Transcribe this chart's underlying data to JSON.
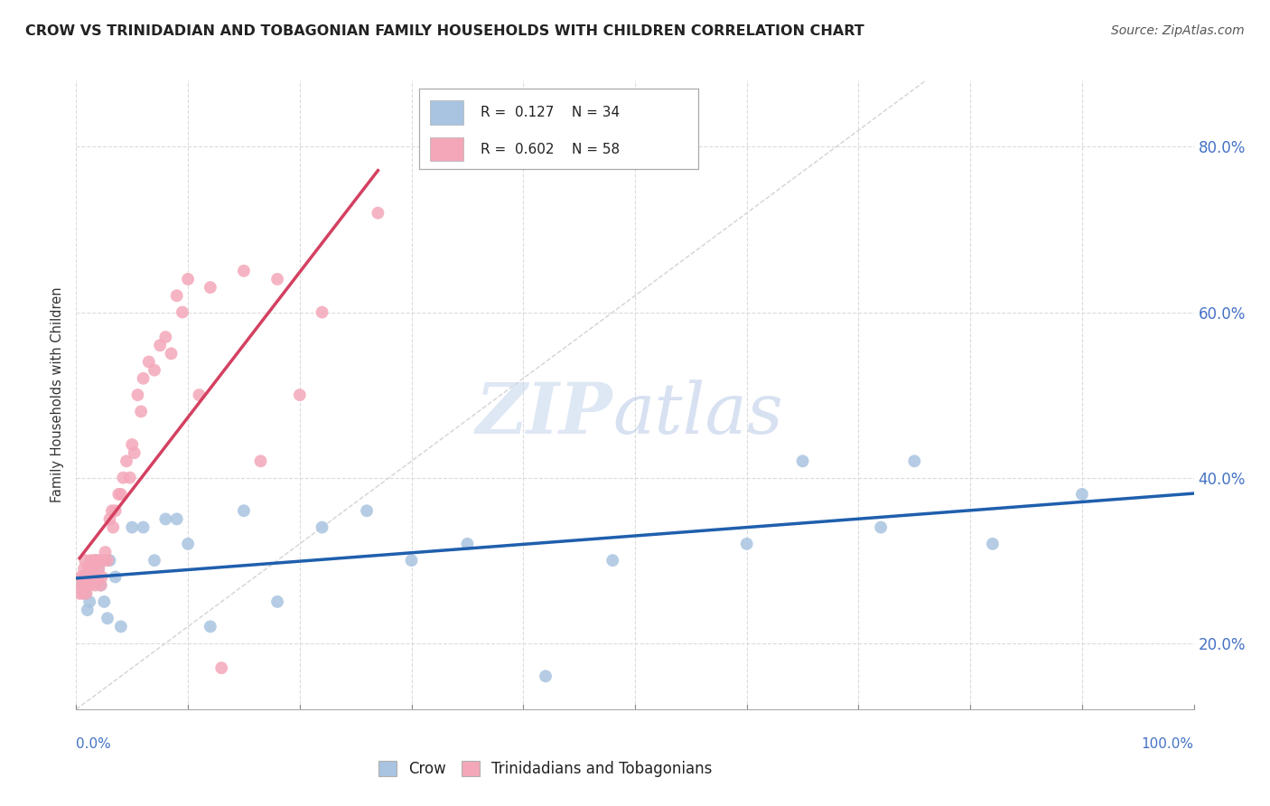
{
  "title": "CROW VS TRINIDADIAN AND TOBAGONIAN FAMILY HOUSEHOLDS WITH CHILDREN CORRELATION CHART",
  "source": "Source: ZipAtlas.com",
  "ylabel": "Family Households with Children",
  "xlim": [
    0.0,
    1.0
  ],
  "ylim": [
    0.12,
    0.88
  ],
  "ytick_values": [
    0.2,
    0.4,
    0.6,
    0.8
  ],
  "xtick_values": [
    0.0,
    0.1,
    0.2,
    0.3,
    0.4,
    0.5,
    0.6,
    0.7,
    0.8,
    0.9,
    1.0
  ],
  "crow_R": 0.127,
  "crow_N": 34,
  "tnt_R": 0.602,
  "tnt_N": 58,
  "crow_color": "#a8c4e0",
  "tnt_color": "#f4a7b9",
  "crow_line_color": "#1f5fad",
  "tnt_line_color": "#d44060",
  "identity_line_color": "#c8c8c8",
  "background_color": "#ffffff",
  "grid_color": "#d8d8d8",
  "crow_points_x": [
    0.005,
    0.008,
    0.01,
    0.012,
    0.015,
    0.018,
    0.02,
    0.022,
    0.025,
    0.028,
    0.03,
    0.035,
    0.04,
    0.05,
    0.06,
    0.07,
    0.08,
    0.09,
    0.1,
    0.12,
    0.15,
    0.18,
    0.22,
    0.26,
    0.3,
    0.35,
    0.42,
    0.48,
    0.6,
    0.65,
    0.72,
    0.75,
    0.82,
    0.9
  ],
  "crow_points_y": [
    0.27,
    0.26,
    0.24,
    0.25,
    0.28,
    0.3,
    0.29,
    0.27,
    0.25,
    0.23,
    0.3,
    0.28,
    0.22,
    0.34,
    0.34,
    0.3,
    0.35,
    0.35,
    0.32,
    0.22,
    0.36,
    0.25,
    0.34,
    0.36,
    0.3,
    0.32,
    0.16,
    0.3,
    0.32,
    0.42,
    0.34,
    0.42,
    0.32,
    0.38
  ],
  "tnt_points_x": [
    0.003,
    0.004,
    0.005,
    0.006,
    0.006,
    0.007,
    0.007,
    0.008,
    0.008,
    0.009,
    0.01,
    0.011,
    0.012,
    0.013,
    0.014,
    0.015,
    0.016,
    0.017,
    0.018,
    0.019,
    0.02,
    0.021,
    0.022,
    0.023,
    0.025,
    0.026,
    0.028,
    0.03,
    0.032,
    0.033,
    0.035,
    0.038,
    0.04,
    0.042,
    0.045,
    0.048,
    0.05,
    0.052,
    0.055,
    0.058,
    0.06,
    0.065,
    0.07,
    0.075,
    0.08,
    0.085,
    0.09,
    0.095,
    0.1,
    0.11,
    0.12,
    0.13,
    0.15,
    0.165,
    0.18,
    0.2,
    0.22,
    0.27
  ],
  "tnt_points_y": [
    0.26,
    0.28,
    0.27,
    0.26,
    0.28,
    0.27,
    0.29,
    0.28,
    0.3,
    0.26,
    0.28,
    0.29,
    0.27,
    0.3,
    0.28,
    0.29,
    0.3,
    0.27,
    0.3,
    0.28,
    0.29,
    0.3,
    0.27,
    0.28,
    0.3,
    0.31,
    0.3,
    0.35,
    0.36,
    0.34,
    0.36,
    0.38,
    0.38,
    0.4,
    0.42,
    0.4,
    0.44,
    0.43,
    0.5,
    0.48,
    0.52,
    0.54,
    0.53,
    0.56,
    0.57,
    0.55,
    0.62,
    0.6,
    0.64,
    0.5,
    0.63,
    0.17,
    0.65,
    0.42,
    0.64,
    0.5,
    0.6,
    0.72
  ]
}
